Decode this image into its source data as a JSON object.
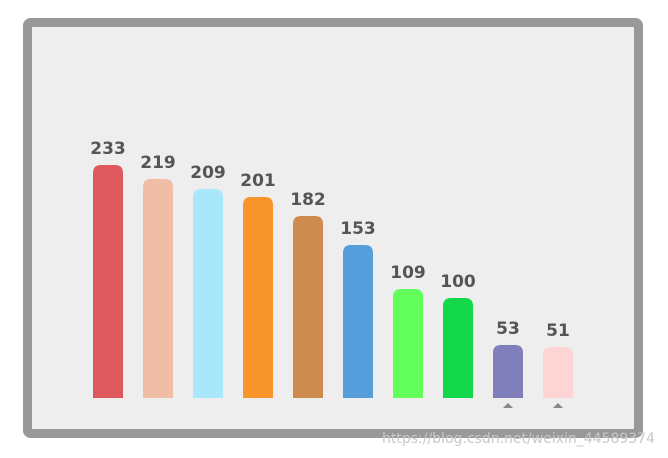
{
  "chart_data": {
    "type": "bar",
    "values": [
      233,
      219,
      209,
      201,
      182,
      153,
      109,
      100,
      53,
      51
    ],
    "colors": [
      "#dd595e",
      "#f0bea6",
      "#a9e8fb",
      "#f7942a",
      "#cd8c4e",
      "#569ddb",
      "#62fe5a",
      "#14d84c",
      "#807fbb",
      "#fed5d5"
    ],
    "watermark": "https://blog.csdn.net/weixin_44589374"
  }
}
